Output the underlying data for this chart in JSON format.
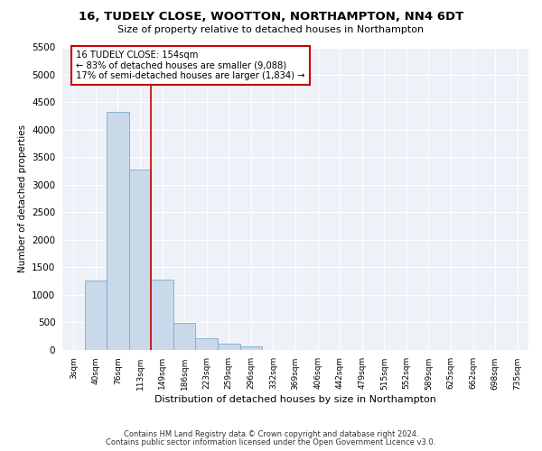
{
  "title_line1": "16, TUDELY CLOSE, WOOTTON, NORTHAMPTON, NN4 6DT",
  "title_line2": "Size of property relative to detached houses in Northampton",
  "xlabel": "Distribution of detached houses by size in Northampton",
  "ylabel": "Number of detached properties",
  "footnote1": "Contains HM Land Registry data © Crown copyright and database right 2024.",
  "footnote2": "Contains public sector information licensed under the Open Government Licence v3.0.",
  "annotation_line1": "16 TUDELY CLOSE: 154sqm",
  "annotation_line2": "← 83% of detached houses are smaller (9,088)",
  "annotation_line3": "17% of semi-detached houses are larger (1,834) →",
  "bar_color": "#c9d9ea",
  "bar_edge_color": "#7aaac8",
  "vline_color": "#cc0000",
  "annotation_box_edgecolor": "#cc0000",
  "background_color": "#eef2f8",
  "categories": [
    "3sqm",
    "40sqm",
    "76sqm",
    "113sqm",
    "149sqm",
    "186sqm",
    "223sqm",
    "259sqm",
    "296sqm",
    "332sqm",
    "369sqm",
    "406sqm",
    "442sqm",
    "479sqm",
    "515sqm",
    "552sqm",
    "589sqm",
    "625sqm",
    "662sqm",
    "698sqm",
    "735sqm"
  ],
  "values": [
    0,
    1250,
    4330,
    3280,
    1280,
    490,
    200,
    100,
    60,
    0,
    0,
    0,
    0,
    0,
    0,
    0,
    0,
    0,
    0,
    0,
    0
  ],
  "ylim": [
    0,
    5500
  ],
  "yticks": [
    0,
    500,
    1000,
    1500,
    2000,
    2500,
    3000,
    3500,
    4000,
    4500,
    5000,
    5500
  ],
  "vline_x": 3.5,
  "bar_width": 1.0
}
